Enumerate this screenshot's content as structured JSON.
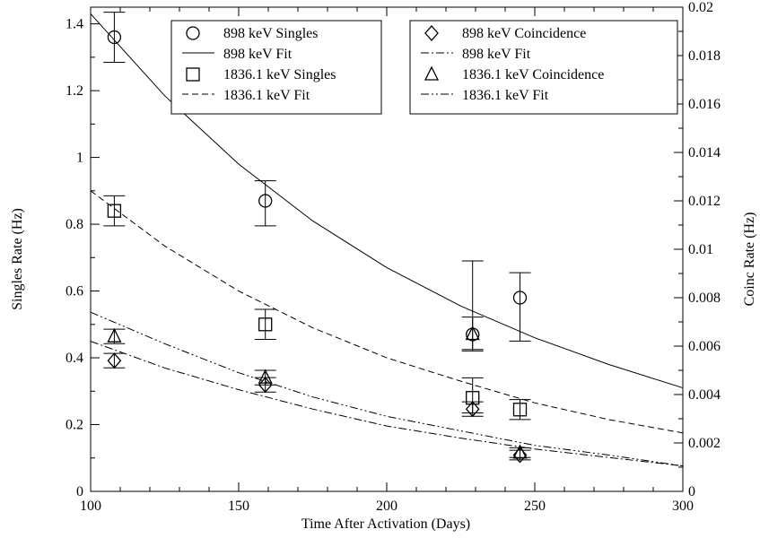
{
  "chart_data": {
    "type": "scatter",
    "xlabel": "Time After Activation (Days)",
    "ylabel_left": "Singles Rate (Hz)",
    "ylabel_right": "Coinc Rate (Hz)",
    "xlim": [
      100,
      300
    ],
    "ylim_left": [
      0,
      1.45
    ],
    "ylim_right": [
      0,
      0.02
    ],
    "x_ticks": [
      100,
      150,
      200,
      250,
      300
    ],
    "y_ticks_left": [
      0,
      0.2,
      0.4,
      0.6,
      0.8,
      1,
      1.2,
      1.4
    ],
    "y_ticks_right": [
      0,
      0.002,
      0.004,
      0.006,
      0.008,
      0.01,
      0.012,
      0.014,
      0.016,
      0.018,
      0.02
    ],
    "grid": false,
    "legend_placement": "top",
    "series": [
      {
        "name": "898 keV Singles",
        "axis": "left",
        "marker": "circle",
        "x": [
          108,
          159,
          229,
          245
        ],
        "y": [
          1.36,
          0.87,
          0.47,
          0.58
        ],
        "yerr_lo": [
          0.075,
          0.075,
          0.045,
          0.13
        ],
        "yerr_hi": [
          0.075,
          0.06,
          0.22,
          0.075
        ]
      },
      {
        "name": "898 keV Fit",
        "axis": "left",
        "style": "solid",
        "x": [
          100,
          125,
          150,
          175,
          200,
          225,
          250,
          275,
          300
        ],
        "y": [
          1.43,
          1.185,
          0.98,
          0.81,
          0.67,
          0.555,
          0.46,
          0.38,
          0.31
        ]
      },
      {
        "name": "1836.1 keV Singles",
        "axis": "left",
        "marker": "square",
        "x": [
          108,
          159,
          229,
          245
        ],
        "y": [
          0.84,
          0.5,
          0.28,
          0.245
        ],
        "yerr_lo": [
          0.045,
          0.045,
          0.045,
          0.03
        ],
        "yerr_hi": [
          0.045,
          0.045,
          0.06,
          0.03
        ]
      },
      {
        "name": "1836.1 keV Fit",
        "axis": "left",
        "style": "dashed",
        "x": [
          100,
          125,
          150,
          175,
          200,
          225,
          250,
          275,
          300
        ],
        "y": [
          0.9,
          0.735,
          0.6,
          0.49,
          0.4,
          0.33,
          0.265,
          0.215,
          0.175
        ]
      },
      {
        "name": "898 keV Coincidence",
        "axis": "right",
        "marker": "diamond",
        "x": [
          108,
          159,
          229,
          245
        ],
        "y": [
          0.0054,
          0.0044,
          0.0034,
          0.0015
        ],
        "yerr_lo": [
          0.0003,
          0.0003,
          0.0003,
          0.0002
        ],
        "yerr_hi": [
          0.0003,
          0.0003,
          0.0003,
          0.0002
        ]
      },
      {
        "name": "898 keV Fit",
        "axis": "right",
        "style": "dashdot",
        "x": [
          100,
          125,
          150,
          175,
          200,
          225,
          250,
          275,
          300
        ],
        "y": [
          0.0062,
          0.0051,
          0.0042,
          0.0034,
          0.0027,
          0.0022,
          0.00175,
          0.0014,
          0.00105
        ]
      },
      {
        "name": "1836.1 keV Coincidence",
        "axis": "right",
        "marker": "triangle",
        "x": [
          108,
          159,
          229,
          245
        ],
        "y": [
          0.0064,
          0.0047,
          0.0065,
          0.0016
        ],
        "yerr_lo": [
          0.0003,
          0.0003,
          0.0007,
          0.0002
        ],
        "yerr_hi": [
          0.0003,
          0.0003,
          0.0007,
          0.0002
        ]
      },
      {
        "name": "1836.1 keV Fit",
        "axis": "right",
        "style": "dashdotdot",
        "x": [
          100,
          125,
          150,
          175,
          200,
          225,
          250,
          275,
          300
        ],
        "y": [
          0.0074,
          0.0061,
          0.0049,
          0.0039,
          0.0031,
          0.0025,
          0.0019,
          0.0015,
          0.00105
        ]
      }
    ]
  }
}
